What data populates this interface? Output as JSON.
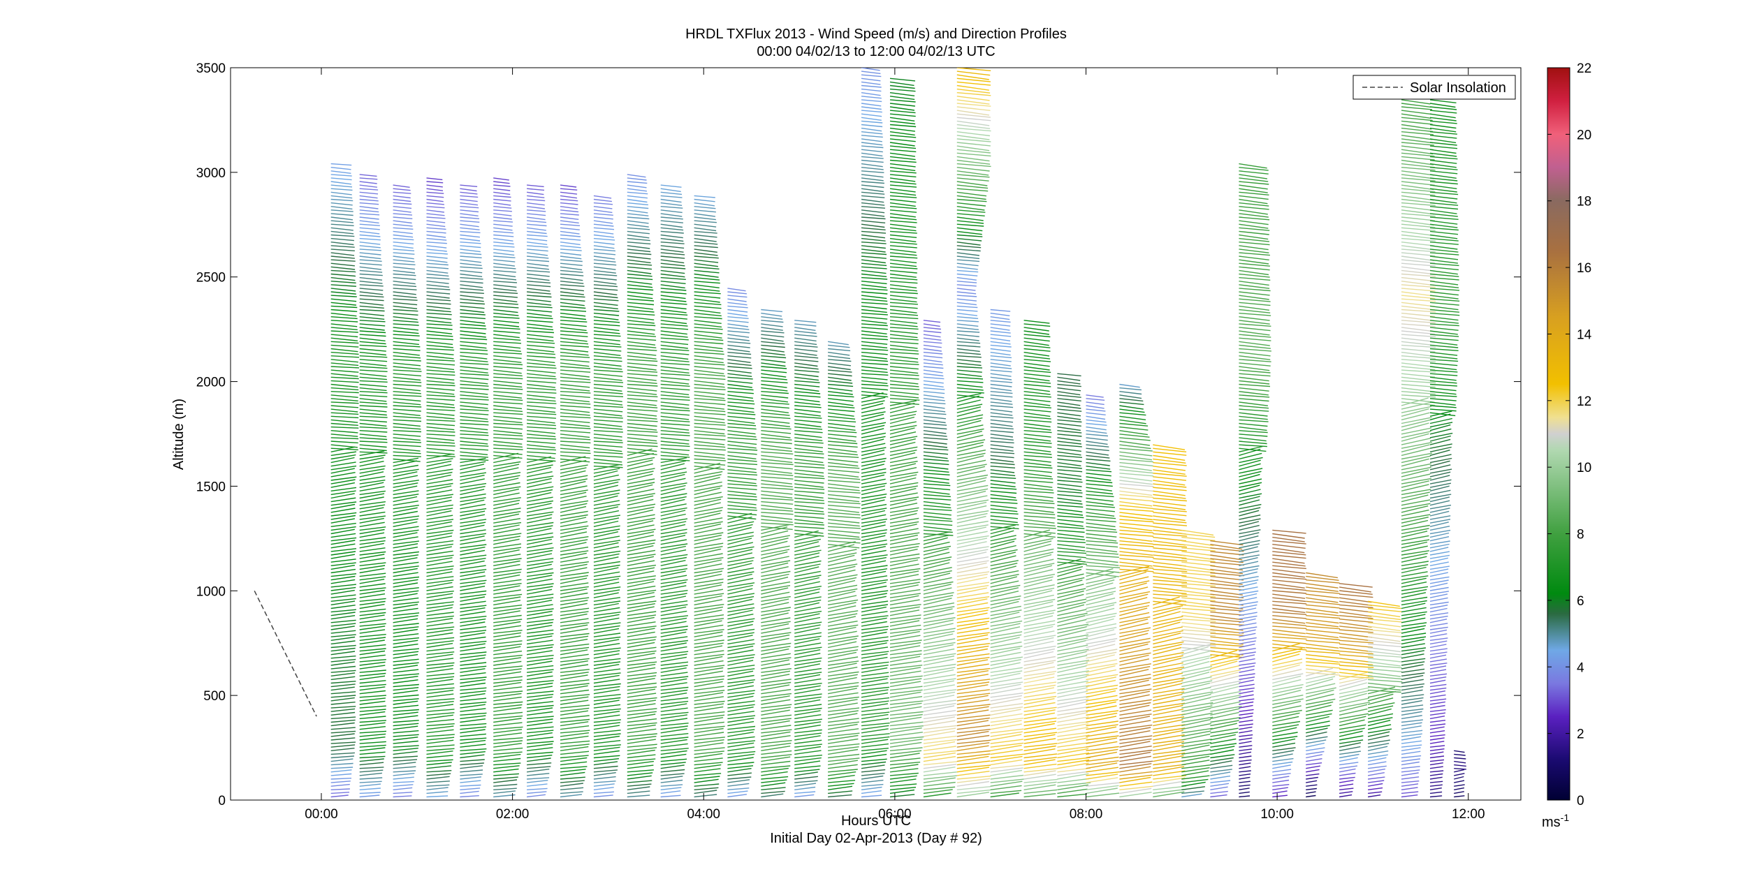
{
  "chart_data": {
    "type": "wind-barb-profile",
    "title": "HRDL TXFlux 2013 - Wind Speed (m/s) and Direction Profiles",
    "subtitle": "00:00 04/02/13 to 12:00 04/02/13  UTC",
    "xlabel": "Hours UTC",
    "xlabel2": "Initial Day 02-Apr-2013 (Day # 92)",
    "ylabel": "Altitude (m)",
    "xlim": [
      -0.95,
      12.55
    ],
    "ylim": [
      0,
      3500
    ],
    "x_ticks": [
      0,
      2,
      4,
      6,
      8,
      10,
      12
    ],
    "x_tick_labels": [
      "00:00",
      "02:00",
      "04:00",
      "06:00",
      "08:00",
      "10:00",
      "12:00"
    ],
    "y_ticks": [
      0,
      500,
      1000,
      1500,
      2000,
      2500,
      3000,
      3500
    ],
    "y_tick_labels": [
      "0",
      "500",
      "1000",
      "1500",
      "2000",
      "2500",
      "3000",
      "3500"
    ],
    "legend": {
      "entries": [
        "Solar Insolation"
      ],
      "placement": "top-right"
    },
    "solar_insolation": {
      "x": [
        -0.7,
        -0.05
      ],
      "y": [
        1000,
        400
      ]
    },
    "colorbar": {
      "label": "ms",
      "label_sup": "-1",
      "range": [
        0,
        22
      ],
      "ticks": [
        0,
        2,
        4,
        6,
        8,
        10,
        12,
        14,
        16,
        18,
        20,
        22
      ],
      "tick_labels": [
        "0",
        "2",
        "4",
        "6",
        "8",
        "10",
        "12",
        "14",
        "16",
        "18",
        "20",
        "22"
      ],
      "stops": [
        {
          "v": 0,
          "c": "#000033"
        },
        {
          "v": 1.2,
          "c": "#1a0a70"
        },
        {
          "v": 2.5,
          "c": "#5a20c0"
        },
        {
          "v": 3.5,
          "c": "#7a78e0"
        },
        {
          "v": 4.5,
          "c": "#6fa8e6"
        },
        {
          "v": 5.6,
          "c": "#2a6a40"
        },
        {
          "v": 6.2,
          "c": "#008a10"
        },
        {
          "v": 8.0,
          "c": "#40a040"
        },
        {
          "v": 10.5,
          "c": "#b0d8b0"
        },
        {
          "v": 11.0,
          "c": "#d0d0d0"
        },
        {
          "v": 11.5,
          "c": "#f0e090"
        },
        {
          "v": 12.5,
          "c": "#f2c000"
        },
        {
          "v": 14.5,
          "c": "#d8a020"
        },
        {
          "v": 16.5,
          "c": "#a87040"
        },
        {
          "v": 18.0,
          "c": "#8a6a60"
        },
        {
          "v": 19.0,
          "c": "#c06090"
        },
        {
          "v": 20.0,
          "c": "#f0607a"
        },
        {
          "v": 21.0,
          "c": "#d02040"
        },
        {
          "v": 22.0,
          "c": "#a01010"
        }
      ]
    },
    "profiles": [
      {
        "t": 0.1,
        "top": 3050,
        "lowSpd": 6.0,
        "midSpd": 6.8,
        "topSpd": 4.0,
        "tilt": 0.55
      },
      {
        "t": 0.4,
        "top": 3000,
        "lowSpd": 6.0,
        "midSpd": 6.8,
        "topSpd": 3.5,
        "tilt": 0.58
      },
      {
        "t": 0.75,
        "top": 2950,
        "lowSpd": 6.5,
        "midSpd": 7.0,
        "topSpd": 3.0,
        "tilt": 0.6
      },
      {
        "t": 1.1,
        "top": 2980,
        "lowSpd": 6.5,
        "midSpd": 7.0,
        "topSpd": 3.0,
        "tilt": 0.62
      },
      {
        "t": 1.45,
        "top": 2950,
        "lowSpd": 6.8,
        "midSpd": 7.2,
        "topSpd": 3.0,
        "tilt": 0.65
      },
      {
        "t": 1.8,
        "top": 2980,
        "lowSpd": 7.0,
        "midSpd": 7.2,
        "topSpd": 3.0,
        "tilt": 0.68
      },
      {
        "t": 2.15,
        "top": 2950,
        "lowSpd": 7.0,
        "midSpd": 7.5,
        "topSpd": 3.0,
        "tilt": 0.72
      },
      {
        "t": 2.5,
        "top": 2950,
        "lowSpd": 7.0,
        "midSpd": 7.5,
        "topSpd": 3.0,
        "tilt": 0.75
      },
      {
        "t": 2.85,
        "top": 2900,
        "lowSpd": 7.2,
        "midSpd": 7.5,
        "topSpd": 3.5,
        "tilt": 0.78
      },
      {
        "t": 3.2,
        "top": 3000,
        "lowSpd": 7.2,
        "midSpd": 7.5,
        "topSpd": 4.0,
        "tilt": 0.8
      },
      {
        "t": 3.55,
        "top": 2950,
        "lowSpd": 7.5,
        "midSpd": 7.5,
        "topSpd": 4.5,
        "tilt": 0.8
      },
      {
        "t": 3.9,
        "top": 2900,
        "lowSpd": 7.5,
        "midSpd": 7.8,
        "topSpd": 4.5,
        "tilt": 0.82
      },
      {
        "t": 4.25,
        "top": 2450,
        "lowSpd": 7.5,
        "midSpd": 7.8,
        "topSpd": 4.0,
        "tilt": 0.85
      },
      {
        "t": 4.6,
        "top": 2350,
        "lowSpd": 7.5,
        "midSpd": 8.0,
        "topSpd": 4.5,
        "tilt": 0.85
      },
      {
        "t": 4.95,
        "top": 2300,
        "lowSpd": 7.5,
        "midSpd": 8.0,
        "topSpd": 5.0,
        "tilt": 0.85
      },
      {
        "t": 5.3,
        "top": 2200,
        "lowSpd": 7.8,
        "midSpd": 8.0,
        "topSpd": 4.5,
        "tilt": 0.85
      },
      {
        "t": 5.65,
        "top": 3500,
        "lowSpd": 7.8,
        "midSpd": 6.5,
        "topSpd": 4.0,
        "tilt": 0.85
      },
      {
        "t": 5.95,
        "top": 3450,
        "lowSpd": 8.5,
        "midSpd": 6.5,
        "topSpd": 6.0,
        "tilt": 0.85
      },
      {
        "t": 6.3,
        "top": 2300,
        "lowSpd": 12.5,
        "midSpd": 6.5,
        "topSpd": 3.5,
        "tilt": 0.9
      },
      {
        "t": 6.65,
        "top": 3500,
        "lowSpd": 15.0,
        "midSpd": 3.5,
        "topSpd": 13.0,
        "tilt": 0.9
      },
      {
        "t": 7.0,
        "top": 2350,
        "lowSpd": 13.0,
        "midSpd": 6.0,
        "topSpd": 4.5,
        "tilt": 0.95
      },
      {
        "t": 7.35,
        "top": 2300,
        "lowSpd": 12.5,
        "midSpd": 6.5,
        "topSpd": 6.0,
        "tilt": 0.95
      },
      {
        "t": 7.7,
        "top": 2050,
        "lowSpd": 13.0,
        "midSpd": 6.5,
        "topSpd": 6.0,
        "tilt": 1.0
      },
      {
        "t": 8.0,
        "top": 1950,
        "lowSpd": 13.5,
        "midSpd": 7.0,
        "topSpd": 3.0,
        "tilt": 1.0
      },
      {
        "t": 8.35,
        "top": 2000,
        "lowSpd": 17.0,
        "midSpd": 13.0,
        "topSpd": 5.0,
        "tilt": 1.0
      },
      {
        "t": 8.7,
        "top": 1700,
        "lowSpd": 13.0,
        "midSpd": 12.5,
        "topSpd": 12.0,
        "tilt": 1.0
      },
      {
        "t": 9.0,
        "top": 1300,
        "lowSpd": 8.0,
        "midSpd": 12.5,
        "topSpd": 12.5,
        "tilt": 1.0
      },
      {
        "t": 9.3,
        "top": 1250,
        "lowSpd": 4.0,
        "midSpd": 15.0,
        "topSpd": 15.0,
        "tilt": 1.0
      },
      {
        "t": 9.6,
        "top": 3050,
        "lowSpd": 2.5,
        "midSpd": 9.0,
        "topSpd": 8.0,
        "tilt": 1.0
      },
      {
        "t": 9.95,
        "top": 1300,
        "lowSpd": 3.0,
        "midSpd": 15.5,
        "topSpd": 16.0,
        "tilt": 1.0
      },
      {
        "t": 10.3,
        "top": 1100,
        "lowSpd": 2.0,
        "midSpd": 15.0,
        "topSpd": 16.0,
        "tilt": 1.0
      },
      {
        "t": 10.65,
        "top": 1050,
        "lowSpd": 2.0,
        "midSpd": 14.0,
        "topSpd": 16.0,
        "tilt": 1.0
      },
      {
        "t": 10.95,
        "top": 950,
        "lowSpd": 3.5,
        "midSpd": 11.0,
        "topSpd": 13.0,
        "tilt": 1.0
      },
      {
        "t": 11.3,
        "top": 3450,
        "lowSpd": 4.0,
        "midSpd": 11.0,
        "topSpd": 7.0,
        "tilt": 0.95
      },
      {
        "t": 11.6,
        "top": 3350,
        "lowSpd": 3.0,
        "midSpd": 8.0,
        "topSpd": 7.0,
        "tilt": 0.95
      },
      {
        "t": 11.85,
        "top": 250,
        "lowSpd": 0.5,
        "midSpd": 1.0,
        "topSpd": 0.5,
        "tilt": 1.0
      }
    ]
  }
}
